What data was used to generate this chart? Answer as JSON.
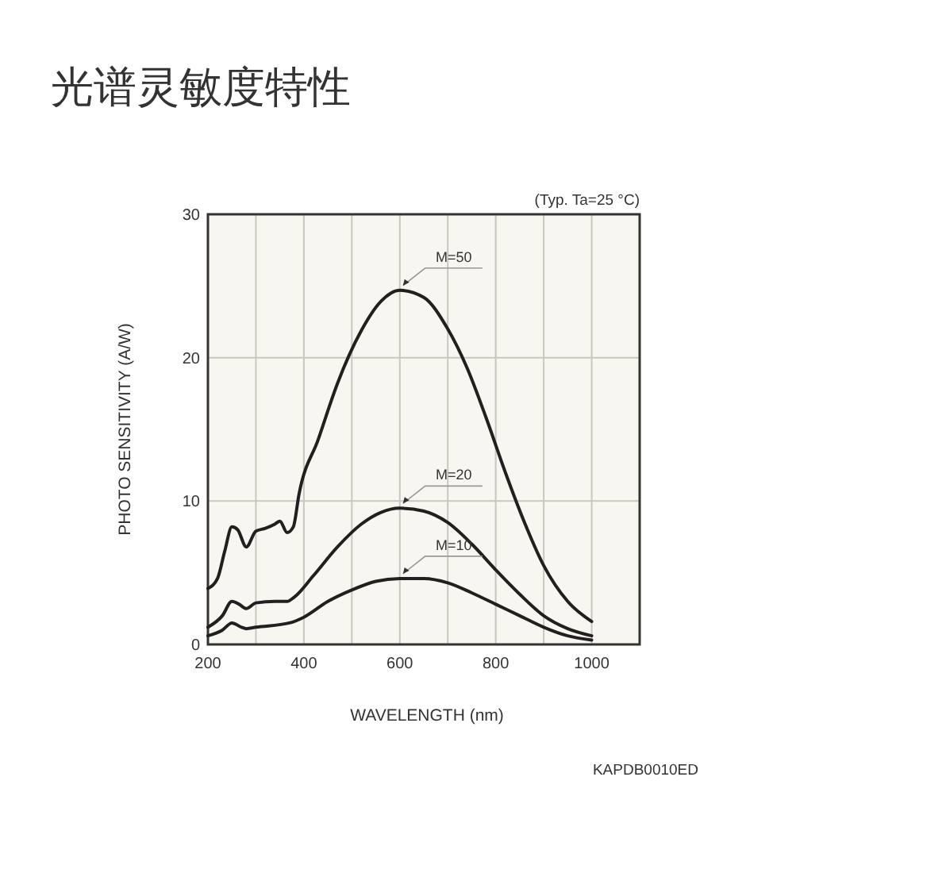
{
  "chart_data": {
    "type": "line",
    "title": "光谱灵敏度特性",
    "xlabel": "WAVELENGTH (nm)",
    "ylabel": "PHOTO SENSITIVITY (A/W)",
    "annotations": [
      "(Typ. Ta=25 °C)",
      "KAPDB0010ED"
    ],
    "xlim": [
      200,
      1100
    ],
    "xticks": [
      200,
      {
        "value": 300,
        "label": null
      },
      400,
      {
        "value": 500,
        "label": null
      },
      600,
      {
        "value": 700,
        "label": null
      },
      800,
      {
        "value": 900,
        "label": null
      },
      1000,
      {
        "value": 1100,
        "label": null
      }
    ],
    "ylim": [
      0,
      30
    ],
    "yticks": [
      0,
      10,
      20,
      30
    ],
    "grid": true,
    "marker": "none",
    "line_style": "solid",
    "series": [
      {
        "name": "M=50",
        "color": "#231f20",
        "x": [
          200,
          220,
          235,
          250,
          262,
          280,
          300,
          320,
          340,
          350,
          365,
          378,
          390,
          430,
          470,
          520,
          560,
          600,
          650,
          700,
          740,
          780,
          820,
          860,
          900,
          950,
          1000
        ],
        "values": [
          3.9,
          4.6,
          6.5,
          8.2,
          8.0,
          6.8,
          7.9,
          8.1,
          8.4,
          8.6,
          7.8,
          8.2,
          10.5,
          14.3,
          18.2,
          21.9,
          23.9,
          24.7,
          24.2,
          22.0,
          19.3,
          15.8,
          12.0,
          8.5,
          5.5,
          3.0,
          1.6
        ]
      },
      {
        "name": "M=20",
        "color": "#231f20",
        "x": [
          200,
          230,
          250,
          265,
          280,
          300,
          340,
          365,
          380,
          420,
          470,
          520,
          560,
          600,
          650,
          700,
          750,
          800,
          850,
          900,
          950,
          1000
        ],
        "values": [
          1.2,
          2.0,
          3.0,
          2.8,
          2.5,
          2.9,
          3.0,
          3.0,
          3.3,
          4.8,
          6.8,
          8.4,
          9.2,
          9.5,
          9.3,
          8.5,
          7.0,
          5.2,
          3.5,
          2.0,
          1.1,
          0.6
        ]
      },
      {
        "name": "M=10",
        "color": "#231f20",
        "x": [
          200,
          230,
          250,
          270,
          280,
          300,
          370,
          400,
          450,
          500,
          550,
          600,
          650,
          700,
          750,
          800,
          850,
          900,
          950,
          1000
        ],
        "values": [
          0.6,
          1.0,
          1.5,
          1.2,
          1.1,
          1.2,
          1.5,
          1.9,
          3.0,
          3.8,
          4.4,
          4.6,
          4.6,
          4.3,
          3.6,
          2.8,
          2.0,
          1.2,
          0.6,
          0.3
        ]
      }
    ]
  }
}
